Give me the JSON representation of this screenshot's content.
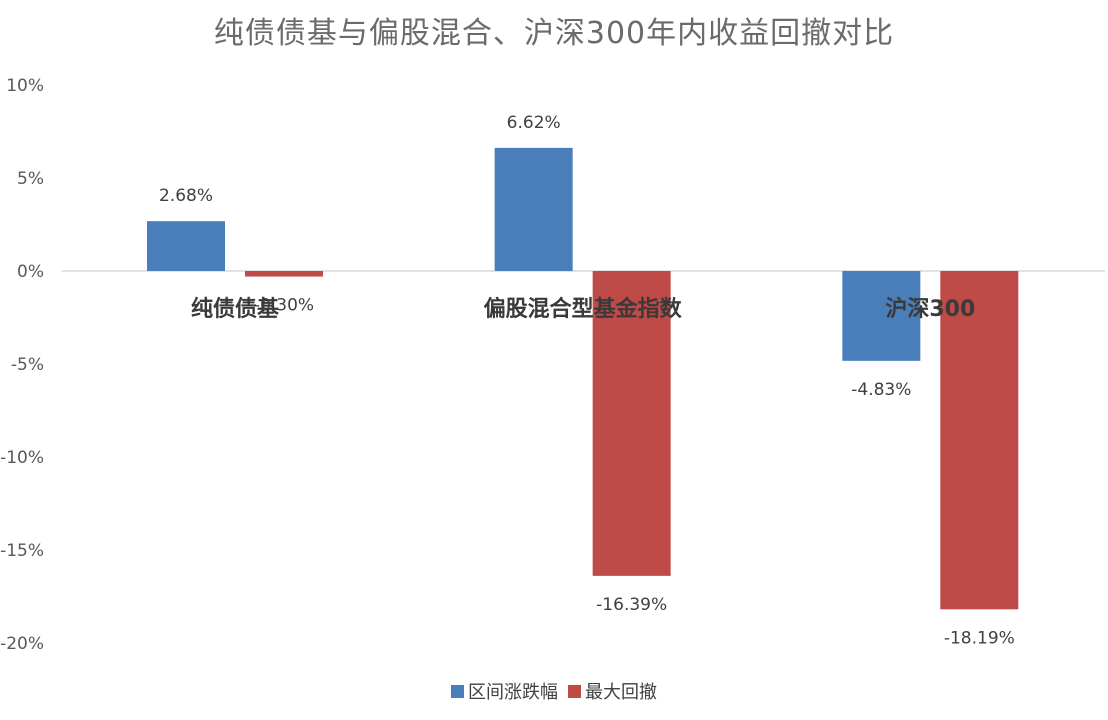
{
  "title": "纯债债基与偏股混合、沪深300年内收益回撤对比",
  "colors": {
    "range_change": "#4a7ebb",
    "max_drawdown": "#be4b48",
    "zero_line": "#d9d9d9"
  },
  "legend": [
    {
      "name": "区间涨跌幅",
      "color_key": "range_change"
    },
    {
      "name": "最大回撤",
      "color_key": "max_drawdown"
    }
  ],
  "chart_data": {
    "type": "bar",
    "title": "纯债债基与偏股混合、沪深300年内收益回撤对比",
    "categories": [
      "纯债债基",
      "偏股混合型基金指数",
      "沪深300"
    ],
    "series": [
      {
        "name": "区间涨跌幅",
        "values": [
          2.68,
          6.62,
          -4.83
        ],
        "labels": [
          "2.68%",
          "6.62%",
          "-4.83%"
        ]
      },
      {
        "name": "最大回撤",
        "values": [
          -0.3,
          -16.39,
          -18.19
        ],
        "labels": [
          "-0.30%",
          "-16.39%",
          "-18.19%"
        ]
      }
    ],
    "ylim": [
      -20,
      10
    ],
    "yticks": [
      "10%",
      "5%",
      "0%",
      "-5%",
      "-10%",
      "-15%",
      "-20%"
    ],
    "grid": false,
    "legend_position": "bottom"
  }
}
